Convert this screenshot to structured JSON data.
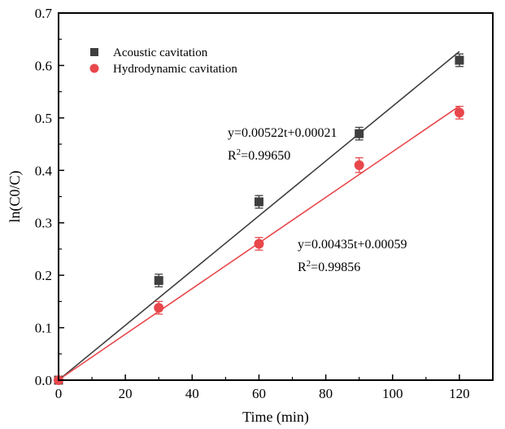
{
  "chart_data": {
    "type": "scatter",
    "xlabel": "Time (min)",
    "ylabel": "ln(C0/C)",
    "xlim": [
      0,
      130
    ],
    "ylim": [
      0,
      0.7
    ],
    "xticks": [
      0,
      20,
      40,
      60,
      80,
      100,
      120
    ],
    "yticks": [
      0.0,
      0.1,
      0.2,
      0.3,
      0.4,
      0.5,
      0.6,
      0.7
    ],
    "xtick_labels": [
      "0",
      "20",
      "40",
      "60",
      "80",
      "100",
      "120"
    ],
    "ytick_labels": [
      "0.0",
      "0.1",
      "0.2",
      "0.3",
      "0.4",
      "0.5",
      "0.6",
      "0.7"
    ],
    "legend_position": "top-left",
    "grid": false,
    "series": [
      {
        "name": "Acoustic cavitation",
        "marker": "square",
        "color": "#3f3f3f",
        "x": [
          0,
          30,
          60,
          90,
          120
        ],
        "y": [
          0,
          0.19,
          0.34,
          0.47,
          0.61
        ],
        "error": [
          0,
          0.012,
          0.012,
          0.012,
          0.012
        ],
        "fit": {
          "slope": 0.00522,
          "intercept": 0.00021
        },
        "equation": "y=0.00522t+0.00021",
        "r2_prefix": "R",
        "r2_sup": "2",
        "r2_value": "=0.99650"
      },
      {
        "name": "Hydrodynamic cavitation",
        "marker": "circle",
        "color": "#e8474b",
        "x": [
          0,
          30,
          60,
          90,
          120
        ],
        "y": [
          0,
          0.138,
          0.26,
          0.41,
          0.51
        ],
        "error": [
          0,
          0.012,
          0.012,
          0.014,
          0.012
        ],
        "fit": {
          "slope": 0.00435,
          "intercept": 0.00059
        },
        "equation": "y=0.00435t+0.00059",
        "r2_prefix": "R",
        "r2_sup": "2",
        "r2_value": "=0.99856"
      }
    ]
  }
}
